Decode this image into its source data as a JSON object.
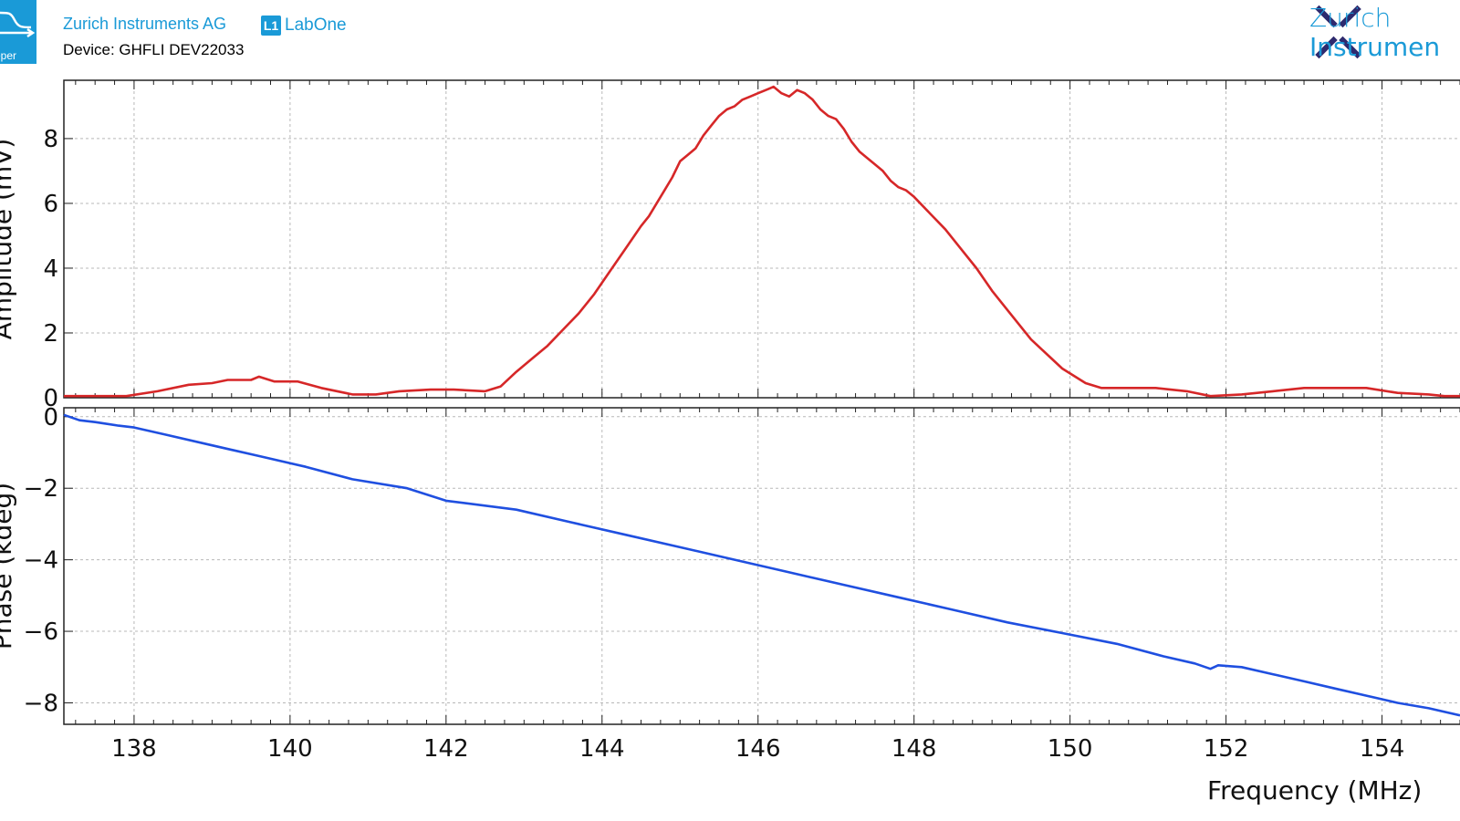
{
  "header": {
    "sweeper_label": "eper",
    "company": "Zurich Instruments AG",
    "labone_badge": "L1",
    "labone": "LabOne",
    "device": "Device: GHFLI DEV22033",
    "zi_line1": "Zurich",
    "zi_line2": "Instrumen"
  },
  "colors": {
    "brand": "#1a9ad7",
    "logo_mark": "#2e2a6e",
    "amplitude": "#d62728",
    "phase": "#1f4fe0"
  },
  "chart_data": [
    {
      "type": "line",
      "ylabel": "Amplitude (mV)",
      "ylim": [
        0,
        9.8
      ],
      "yticks": [
        0,
        2,
        4,
        6,
        8
      ],
      "xlim": [
        137.1,
        155
      ],
      "xticks": [
        138,
        140,
        142,
        144,
        146,
        148,
        150,
        152,
        154
      ],
      "grid": true,
      "series": [
        {
          "color": "#d62728",
          "x": [
            137.1,
            137.5,
            137.9,
            138.3,
            138.7,
            139.0,
            139.2,
            139.5,
            139.6,
            139.8,
            140.1,
            140.4,
            140.8,
            141.1,
            141.4,
            141.8,
            142.1,
            142.5,
            142.7,
            142.9,
            143.1,
            143.3,
            143.5,
            143.7,
            143.9,
            144.1,
            144.3,
            144.5,
            144.6,
            144.7,
            144.8,
            144.9,
            145.0,
            145.1,
            145.2,
            145.3,
            145.4,
            145.5,
            145.6,
            145.7,
            145.8,
            145.9,
            146.0,
            146.1,
            146.15,
            146.2,
            146.3,
            146.4,
            146.5,
            146.6,
            146.7,
            146.8,
            146.9,
            147.0,
            147.1,
            147.2,
            147.3,
            147.4,
            147.5,
            147.6,
            147.7,
            147.8,
            147.9,
            148.0,
            148.2,
            148.4,
            148.6,
            148.8,
            149.0,
            149.2,
            149.5,
            149.9,
            150.2,
            150.4,
            150.7,
            151.1,
            151.5,
            151.8,
            152.2,
            152.6,
            153.0,
            153.4,
            153.8,
            154.2,
            154.6,
            154.8,
            155.0
          ],
          "y": [
            0.05,
            0.05,
            0.05,
            0.2,
            0.4,
            0.45,
            0.55,
            0.55,
            0.65,
            0.5,
            0.5,
            0.3,
            0.1,
            0.1,
            0.2,
            0.25,
            0.25,
            0.2,
            0.35,
            0.8,
            1.2,
            1.6,
            2.1,
            2.6,
            3.2,
            3.9,
            4.6,
            5.3,
            5.6,
            6.0,
            6.4,
            6.8,
            7.3,
            7.5,
            7.7,
            8.1,
            8.4,
            8.7,
            8.9,
            9.0,
            9.2,
            9.3,
            9.4,
            9.5,
            9.55,
            9.6,
            9.4,
            9.3,
            9.5,
            9.4,
            9.2,
            8.9,
            8.7,
            8.6,
            8.3,
            7.9,
            7.6,
            7.4,
            7.2,
            7.0,
            6.7,
            6.5,
            6.4,
            6.2,
            5.7,
            5.2,
            4.6,
            4.0,
            3.3,
            2.7,
            1.8,
            0.9,
            0.45,
            0.3,
            0.3,
            0.3,
            0.2,
            0.05,
            0.1,
            0.2,
            0.3,
            0.3,
            0.3,
            0.15,
            0.1,
            0.05,
            0.05
          ]
        }
      ]
    },
    {
      "type": "line",
      "ylabel": "Phase (kdeg)",
      "xlabel": "Frequency (MHz)",
      "ylim": [
        -8.6,
        0.25
      ],
      "yticks": [
        0,
        -2,
        -4,
        -6,
        -8
      ],
      "xlim": [
        137.1,
        155
      ],
      "xticks": [
        138,
        140,
        142,
        144,
        146,
        148,
        150,
        152,
        154
      ],
      "grid": true,
      "series": [
        {
          "color": "#1f4fe0",
          "x": [
            137.1,
            137.3,
            137.5,
            137.8,
            138.0,
            138.2,
            138.4,
            139.0,
            139.6,
            140.2,
            140.8,
            141.5,
            142.0,
            142.9,
            143.6,
            144.3,
            145.0,
            145.7,
            146.4,
            147.1,
            147.8,
            148.5,
            149.2,
            149.9,
            150.6,
            151.2,
            151.6,
            151.8,
            151.9,
            152.2,
            152.6,
            153.0,
            153.4,
            153.8,
            154.2,
            154.6,
            155.0
          ],
          "y": [
            0.05,
            -0.1,
            -0.15,
            -0.25,
            -0.3,
            -0.4,
            -0.5,
            -0.8,
            -1.1,
            -1.4,
            -1.75,
            -2.0,
            -2.35,
            -2.6,
            -2.95,
            -3.3,
            -3.65,
            -4.0,
            -4.35,
            -4.7,
            -5.05,
            -5.4,
            -5.75,
            -6.05,
            -6.35,
            -6.7,
            -6.9,
            -7.05,
            -6.95,
            -7.0,
            -7.2,
            -7.4,
            -7.6,
            -7.8,
            -8.0,
            -8.15,
            -8.35
          ]
        }
      ]
    }
  ]
}
